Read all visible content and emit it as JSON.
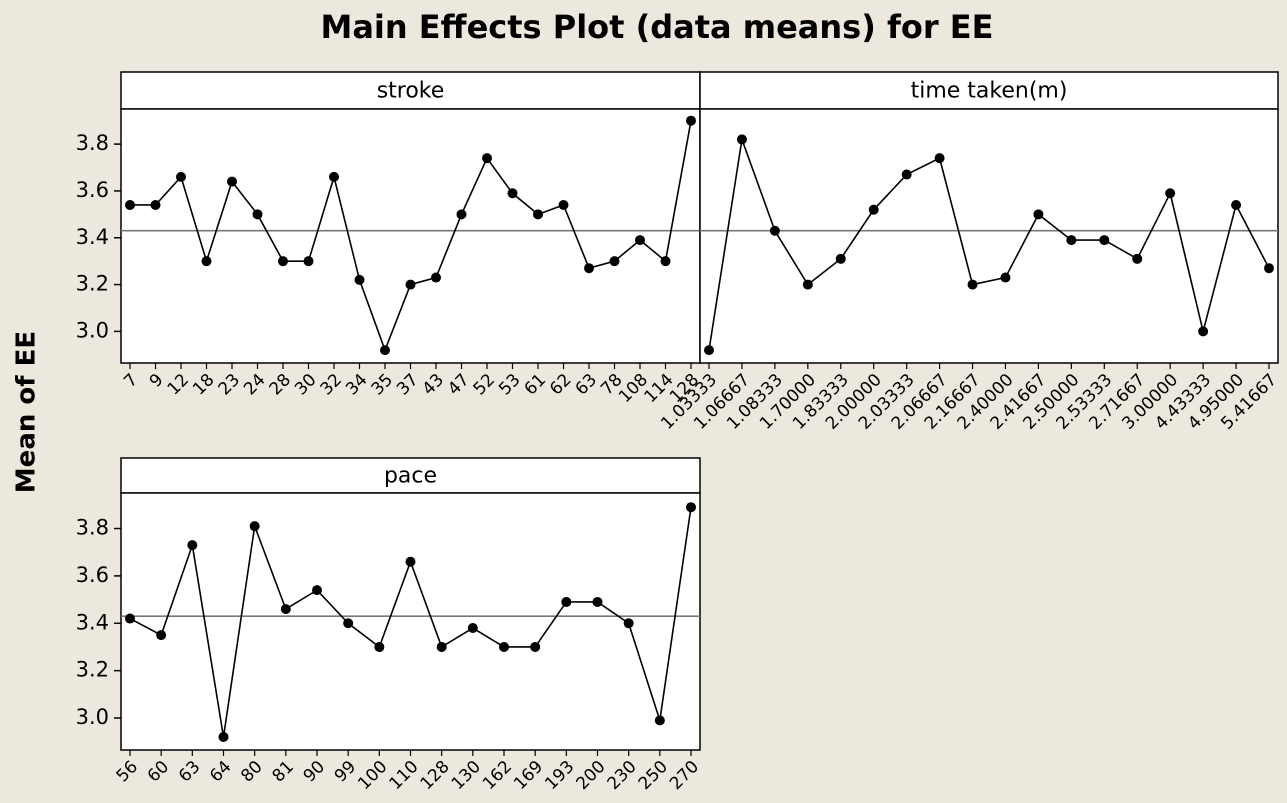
{
  "title": "Main Effects Plot (data means) for EE",
  "y_label": "Mean of EE",
  "chart_data": [
    {
      "type": "line",
      "title": "stroke",
      "categories": [
        "7",
        "9",
        "12",
        "18",
        "23",
        "24",
        "28",
        "30",
        "32",
        "34",
        "35",
        "37",
        "43",
        "47",
        "52",
        "53",
        "61",
        "62",
        "63",
        "78",
        "108",
        "114",
        "128"
      ],
      "values": [
        3.54,
        3.54,
        3.66,
        3.3,
        3.64,
        3.5,
        3.3,
        3.3,
        3.66,
        3.22,
        2.92,
        3.2,
        3.23,
        3.5,
        3.74,
        3.59,
        3.5,
        3.54,
        3.27,
        3.3,
        3.39,
        3.3,
        3.9
      ],
      "color": "#000000",
      "reference_line": 3.43,
      "ylim": [
        2.865,
        3.95
      ],
      "yticks": [
        {
          "value": 3,
          "label": "3.0"
        },
        3.2,
        3.4,
        3.6,
        3.8
      ]
    },
    {
      "type": "line",
      "title": "time taken(m)",
      "categories": [
        "1.03333",
        "1.06667",
        "1.08333",
        "1.70000",
        "1.83333",
        "2.00000",
        "2.03333",
        "2.06667",
        "2.16667",
        "2.40000",
        "2.41667",
        "2.50000",
        "2.53333",
        "2.71667",
        "3.00000",
        "4.43333",
        "4.95000",
        "5.41667"
      ],
      "values": [
        2.92,
        3.82,
        3.43,
        3.2,
        3.31,
        3.52,
        3.67,
        3.74,
        3.2,
        3.23,
        3.5,
        3.39,
        3.39,
        3.31,
        3.59,
        3.0,
        3.54,
        3.27
      ],
      "color": "#000000",
      "reference_line": 3.43,
      "ylim": [
        2.865,
        3.95
      ],
      "yticks": [
        {
          "value": 3,
          "label": "3.0"
        },
        3.2,
        3.4,
        3.6,
        3.8
      ]
    },
    {
      "type": "line",
      "title": "pace",
      "categories": [
        "56",
        "60",
        "63",
        "64",
        "80",
        "81",
        "90",
        "99",
        "100",
        "110",
        "128",
        "130",
        "162",
        "169",
        "193",
        "200",
        "230",
        "250",
        "270"
      ],
      "values": [
        3.42,
        3.35,
        3.73,
        2.92,
        3.81,
        3.46,
        3.54,
        3.4,
        3.3,
        3.66,
        3.3,
        3.38,
        3.3,
        3.3,
        3.49,
        3.49,
        3.4,
        2.99,
        3.89
      ],
      "color": "#000000",
      "reference_line": 3.43,
      "ylim": [
        2.865,
        3.95
      ],
      "yticks": [
        {
          "value": 3,
          "label": "3.0"
        },
        3.2,
        3.4,
        3.6,
        3.8
      ]
    }
  ]
}
